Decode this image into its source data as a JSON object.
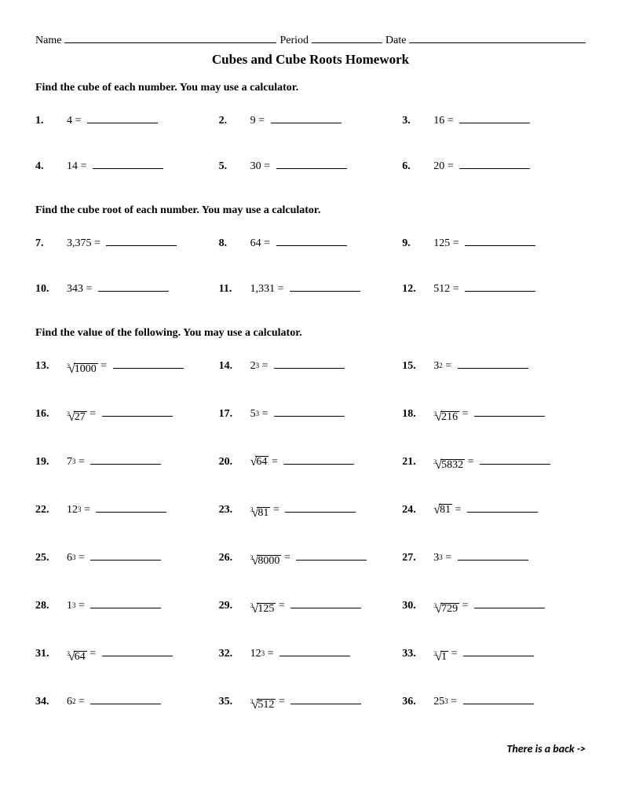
{
  "header": {
    "name_label": "Name",
    "period_label": "Period",
    "date_label": "Date"
  },
  "title": "Cubes and Cube Roots Homework",
  "sections": [
    {
      "instruction": "Find the cube of each number.  You may use a calculator.",
      "problems": [
        {
          "num": "1.",
          "type": "plain",
          "value": "4"
        },
        {
          "num": "2.",
          "type": "plain",
          "value": "9"
        },
        {
          "num": "3.",
          "type": "plain",
          "value": "16"
        },
        {
          "num": "4.",
          "type": "plain",
          "value": "14"
        },
        {
          "num": "5.",
          "type": "plain",
          "value": "30"
        },
        {
          "num": "6.",
          "type": "plain",
          "value": "20"
        }
      ]
    },
    {
      "instruction": "Find the cube root of each number.  You may use a calculator.",
      "problems": [
        {
          "num": "7.",
          "type": "plain",
          "value": "3,375"
        },
        {
          "num": "8.",
          "type": "plain",
          "value": "64"
        },
        {
          "num": "9.",
          "type": "plain",
          "value": "125"
        },
        {
          "num": "10.",
          "type": "plain",
          "value": "343"
        },
        {
          "num": "11.",
          "type": "plain",
          "value": "1,331"
        },
        {
          "num": "12.",
          "type": "plain",
          "value": "512"
        }
      ]
    },
    {
      "instruction": "Find the value of the following.  You may use a calculator.",
      "problems": [
        {
          "num": "13.",
          "type": "cuberoot",
          "value": "1000"
        },
        {
          "num": "14.",
          "type": "power",
          "base": "2",
          "exp": "3"
        },
        {
          "num": "15.",
          "type": "power",
          "base": "3",
          "exp": "2"
        },
        {
          "num": "16.",
          "type": "cuberoot",
          "value": "27"
        },
        {
          "num": "17.",
          "type": "power",
          "base": "5",
          "exp": "3"
        },
        {
          "num": "18.",
          "type": "cuberoot",
          "value": "216"
        },
        {
          "num": "19.",
          "type": "power",
          "base": "7",
          "exp": "3"
        },
        {
          "num": "20.",
          "type": "sqrt",
          "value": "64"
        },
        {
          "num": "21.",
          "type": "cuberoot",
          "value": "5832"
        },
        {
          "num": "22.",
          "type": "power",
          "base": "12",
          "exp": "3"
        },
        {
          "num": "23.",
          "type": "cuberoot",
          "value": "81"
        },
        {
          "num": "24.",
          "type": "sqrt",
          "value": "81"
        },
        {
          "num": "25.",
          "type": "power",
          "base": "6",
          "exp": "3"
        },
        {
          "num": "26.",
          "type": "cuberoot",
          "value": "8000"
        },
        {
          "num": "27.",
          "type": "power",
          "base": "3",
          "exp": "3"
        },
        {
          "num": "28.",
          "type": "power",
          "base": "1",
          "exp": "3"
        },
        {
          "num": "29.",
          "type": "cuberoot",
          "value": "125"
        },
        {
          "num": "30.",
          "type": "cuberoot",
          "value": "729"
        },
        {
          "num": "31.",
          "type": "cuberoot",
          "value": "64"
        },
        {
          "num": "32.",
          "type": "power",
          "base": "12",
          "exp": "3"
        },
        {
          "num": "33.",
          "type": "cuberoot",
          "value": "1"
        },
        {
          "num": "34.",
          "type": "power",
          "base": "6",
          "exp": "2"
        },
        {
          "num": "35.",
          "type": "cuberoot",
          "value": "512"
        },
        {
          "num": "36.",
          "type": "power",
          "base": "25",
          "exp": "3"
        }
      ]
    }
  ],
  "footer": "There is a back ->"
}
